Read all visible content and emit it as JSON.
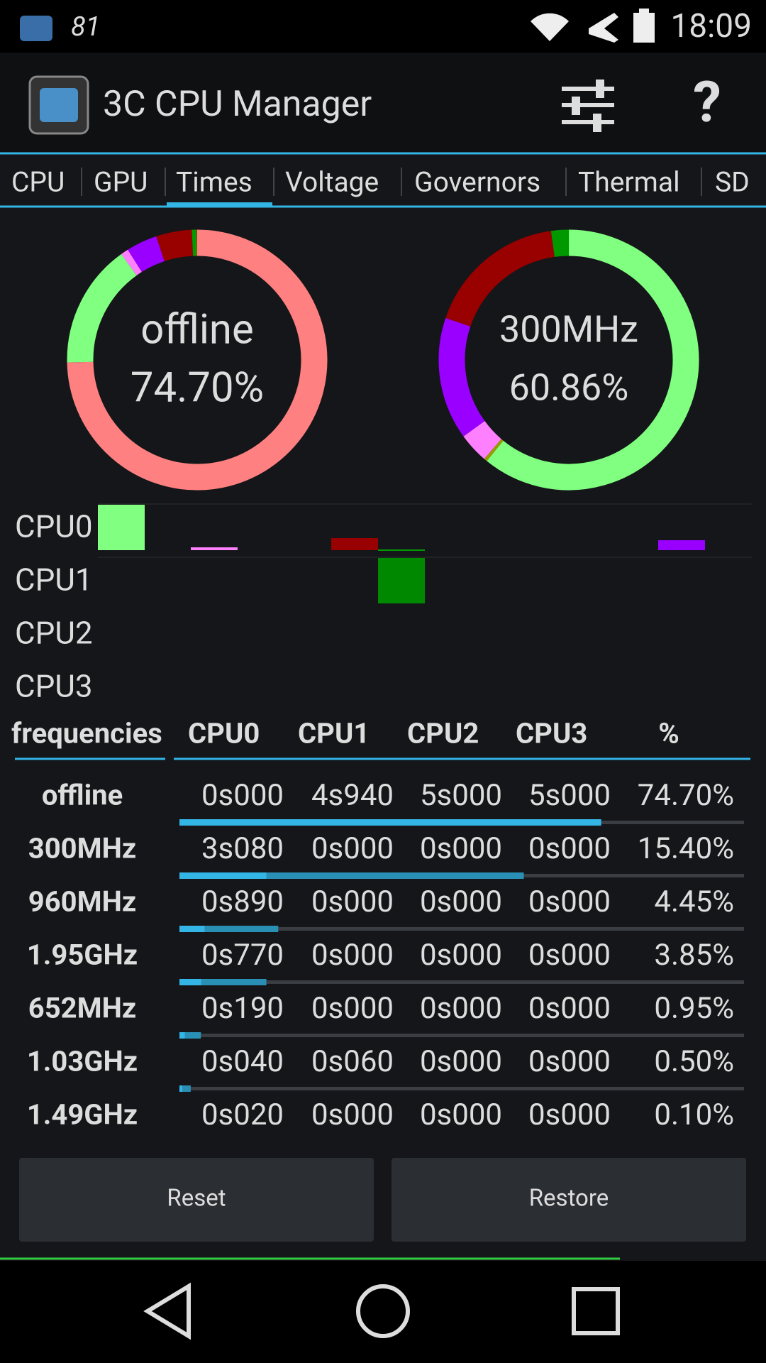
{
  "status": {
    "left": "81",
    "time": "18:09"
  },
  "app": {
    "title": "3C CPU Manager"
  },
  "tabs": [
    "CPU",
    "GPU",
    "Times",
    "Voltage",
    "Governors",
    "Thermal",
    "SD"
  ],
  "selected_tab": 2,
  "donuts": [
    {
      "label": "offline",
      "value_label": "74.70%",
      "segments": [
        {
          "value": 74.7,
          "color": "#ff8080"
        },
        {
          "value": 15.4,
          "color": "#80ff80"
        },
        {
          "value": 0.95,
          "color": "#ff80ff"
        },
        {
          "value": 3.85,
          "color": "#9900ff"
        },
        {
          "value": 4.45,
          "color": "#990000"
        },
        {
          "value": 0.5,
          "color": "#009900"
        },
        {
          "value": 0.1,
          "color": "#999900"
        }
      ]
    },
    {
      "label": "300MHz",
      "value_label": "60.86%",
      "segments": [
        {
          "value": 60.86,
          "color": "#80ff80"
        },
        {
          "value": 0.4,
          "color": "#999900"
        },
        {
          "value": 3.75,
          "color": "#ff80ff"
        },
        {
          "value": 15.2,
          "color": "#9900ff"
        },
        {
          "value": 17.6,
          "color": "#990000"
        },
        {
          "value": 2.2,
          "color": "#009900"
        }
      ]
    }
  ],
  "cpu_rows": [
    "CPU0",
    "CPU1",
    "CPU2",
    "CPU3"
  ],
  "table": {
    "header": [
      "frequencies",
      "CPU0",
      "CPU1",
      "CPU2",
      "CPU3",
      "%"
    ],
    "rows": [
      {
        "label": "offline",
        "color": "#ff8080",
        "cells": [
          "0s000",
          "4s940",
          "5s000",
          "5s000",
          "74.70%"
        ],
        "progress": [
          74.7,
          74.7
        ]
      },
      {
        "label": "300MHz",
        "color": "#80ff80",
        "cells": [
          "3s080",
          "0s000",
          "0s000",
          "0s000",
          "15.40%"
        ],
        "progress": [
          15.4,
          61
        ]
      },
      {
        "label": "960MHz",
        "color": "#aa0000",
        "cells": [
          "0s890",
          "0s000",
          "0s000",
          "0s000",
          "4.45%"
        ],
        "progress": [
          4.45,
          17.5
        ]
      },
      {
        "label": "1.95GHz",
        "color": "#9900ff",
        "cells": [
          "0s770",
          "0s000",
          "0s000",
          "0s000",
          "3.85%"
        ],
        "progress": [
          3.85,
          15.4
        ]
      },
      {
        "label": "652MHz",
        "color": "#ff80ff",
        "cells": [
          "0s190",
          "0s000",
          "0s000",
          "0s000",
          "0.95%"
        ],
        "progress": [
          0.95,
          3.8
        ]
      },
      {
        "label": "1.03GHz",
        "color": "#009900",
        "cells": [
          "0s040",
          "0s060",
          "0s000",
          "0s000",
          "0.50%"
        ],
        "progress": [
          0.5,
          2
        ]
      },
      {
        "label": "1.49GHz",
        "color": "#999900",
        "cells": [
          "0s020",
          "0s000",
          "0s000",
          "0s000",
          "0.10%"
        ]
      }
    ]
  },
  "buttons": [
    "Reset",
    "Restore"
  ]
}
